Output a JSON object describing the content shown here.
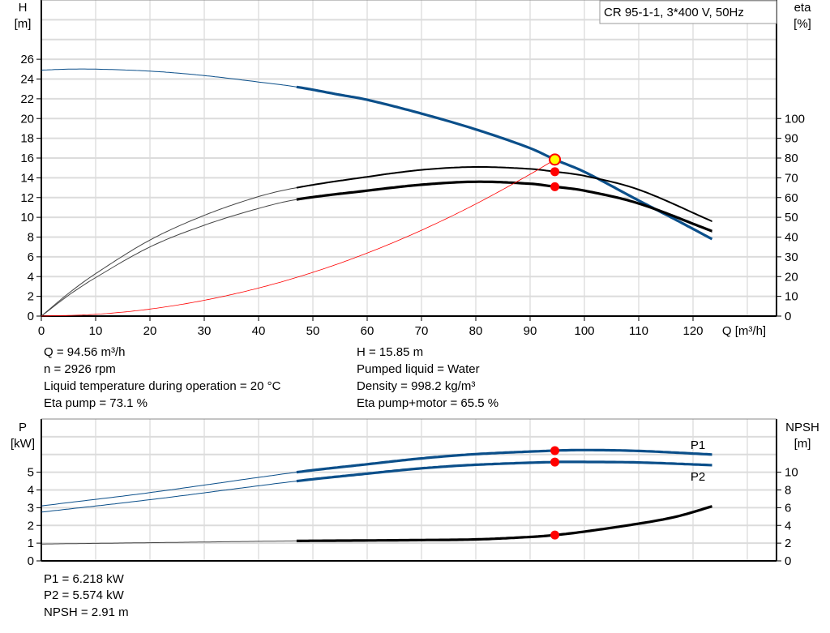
{
  "chart_data": [
    {
      "type": "line",
      "title": "CR 95-1-1, 3*400 V, 50Hz",
      "xlabel": "Q [m³/h]",
      "ylabel_left": [
        "H",
        "[m]"
      ],
      "ylabel_right": [
        "eta",
        "[%]"
      ],
      "xlim": [
        0,
        135
      ],
      "ylim_left": [
        0,
        32
      ],
      "ylim_right": [
        0,
        160
      ],
      "xticks": [
        0,
        10,
        20,
        30,
        40,
        50,
        60,
        70,
        80,
        90,
        100,
        110,
        120
      ],
      "yticks_left": [
        0,
        2,
        4,
        6,
        8,
        10,
        12,
        14,
        16,
        18,
        20,
        22,
        24,
        26
      ],
      "yticks_right": [
        0,
        10,
        20,
        30,
        40,
        50,
        60,
        70,
        80,
        90,
        100
      ],
      "grid": true,
      "series": [
        {
          "id": "H",
          "axis": "left",
          "color": "#0b4f8a",
          "x": [
            0,
            5,
            10,
            20,
            30,
            40,
            47,
            55,
            60,
            70,
            80,
            90,
            94.56,
            100,
            110,
            117,
            123.5
          ],
          "y": [
            24.9,
            25.0,
            25.0,
            24.8,
            24.35,
            23.7,
            23.2,
            22.4,
            21.9,
            20.5,
            18.9,
            17.0,
            15.85,
            14.6,
            11.7,
            9.7,
            7.8
          ]
        },
        {
          "id": "eta-pump",
          "axis": "right",
          "color": "#000000",
          "x": [
            0,
            5,
            10,
            20,
            30,
            40,
            47,
            60,
            70,
            80,
            90,
            94.56,
            100,
            110,
            123.5
          ],
          "y": [
            0,
            11.5,
            21.5,
            38.5,
            51,
            60.5,
            65,
            70.5,
            74,
            75.5,
            74.5,
            73.1,
            71,
            64,
            48
          ]
        },
        {
          "id": "eta-pump-motor",
          "axis": "right",
          "color": "#000000",
          "x": [
            0,
            5,
            10,
            20,
            30,
            40,
            47,
            60,
            70,
            80,
            90,
            94.56,
            100,
            110,
            123.5
          ],
          "y": [
            0,
            10.5,
            19.5,
            35,
            46,
            54.5,
            59,
            63.5,
            66.5,
            68,
            67,
            65.5,
            63.5,
            57,
            43
          ]
        },
        {
          "id": "system-curve",
          "axis": "left",
          "color": "#ff0000",
          "x": [
            0,
            10,
            20,
            30,
            40,
            50,
            60,
            70,
            80,
            90,
            94.56
          ],
          "y": [
            0,
            0.18,
            0.71,
            1.6,
            2.84,
            4.43,
            6.38,
            8.69,
            11.35,
            14.36,
            15.85
          ]
        }
      ],
      "operating_points": [
        {
          "x": 94.56,
          "y": 15.85,
          "axis": "left",
          "color": "#ffff00"
        },
        {
          "x": 94.56,
          "y": 73.1,
          "axis": "right",
          "color": "#ff0000"
        },
        {
          "x": 94.56,
          "y": 65.5,
          "axis": "right",
          "color": "#ff0000"
        }
      ]
    },
    {
      "type": "line",
      "ylabel_left": [
        "P",
        "[kW]"
      ],
      "ylabel_right": [
        "NPSH",
        "[m]"
      ],
      "xlim": [
        0,
        135
      ],
      "ylim_left": [
        0,
        8
      ],
      "ylim_right": [
        0,
        16
      ],
      "yticks_left": [
        0,
        1,
        2,
        3,
        4,
        5
      ],
      "yticks_right": [
        0,
        2,
        4,
        6,
        8,
        10
      ],
      "grid": true,
      "series": [
        {
          "id": "P1",
          "name": "P1",
          "axis": "left",
          "color": "#0b4f8a",
          "x": [
            0,
            20,
            47,
            60,
            70,
            80,
            94.56,
            100,
            110,
            123.5
          ],
          "y": [
            3.1,
            3.85,
            5.0,
            5.45,
            5.78,
            6.02,
            6.218,
            6.25,
            6.2,
            6.0
          ]
        },
        {
          "id": "P2",
          "name": "P2",
          "axis": "left",
          "color": "#0b4f8a",
          "x": [
            0,
            20,
            47,
            60,
            70,
            80,
            94.56,
            100,
            110,
            123.5
          ],
          "y": [
            2.75,
            3.45,
            4.5,
            4.92,
            5.22,
            5.42,
            5.574,
            5.58,
            5.55,
            5.4
          ]
        },
        {
          "id": "NPSH",
          "axis": "right",
          "color": "#000000",
          "x": [
            0,
            20,
            47,
            60,
            70,
            80,
            90,
            94.56,
            100,
            110,
            117,
            123.5
          ],
          "y": [
            1.9,
            2.05,
            2.25,
            2.3,
            2.35,
            2.42,
            2.7,
            2.91,
            3.3,
            4.2,
            5.0,
            6.15
          ]
        }
      ],
      "operating_points": [
        {
          "x": 94.56,
          "y": 6.218,
          "axis": "left",
          "color": "#ff0000"
        },
        {
          "x": 94.56,
          "y": 5.574,
          "axis": "left",
          "color": "#ff0000"
        },
        {
          "x": 94.56,
          "y": 2.91,
          "axis": "right",
          "color": "#ff0000"
        }
      ]
    }
  ],
  "results": {
    "q": "Q = 94.56 m³/h",
    "n": "n = 2926 rpm",
    "temp": "Liquid temperature during operation = 20 °C",
    "eta_pump": "Eta pump = 73.1 %",
    "h": "H = 15.85 m",
    "liquid": "Pumped liquid = Water",
    "density": "Density = 998.2 kg/m³",
    "eta_total": "Eta pump+motor = 65.5 %",
    "p1": "P1 = 6.218 kW",
    "p2": "P2 = 5.574 kW",
    "npsh": "NPSH = 2.91 m"
  }
}
